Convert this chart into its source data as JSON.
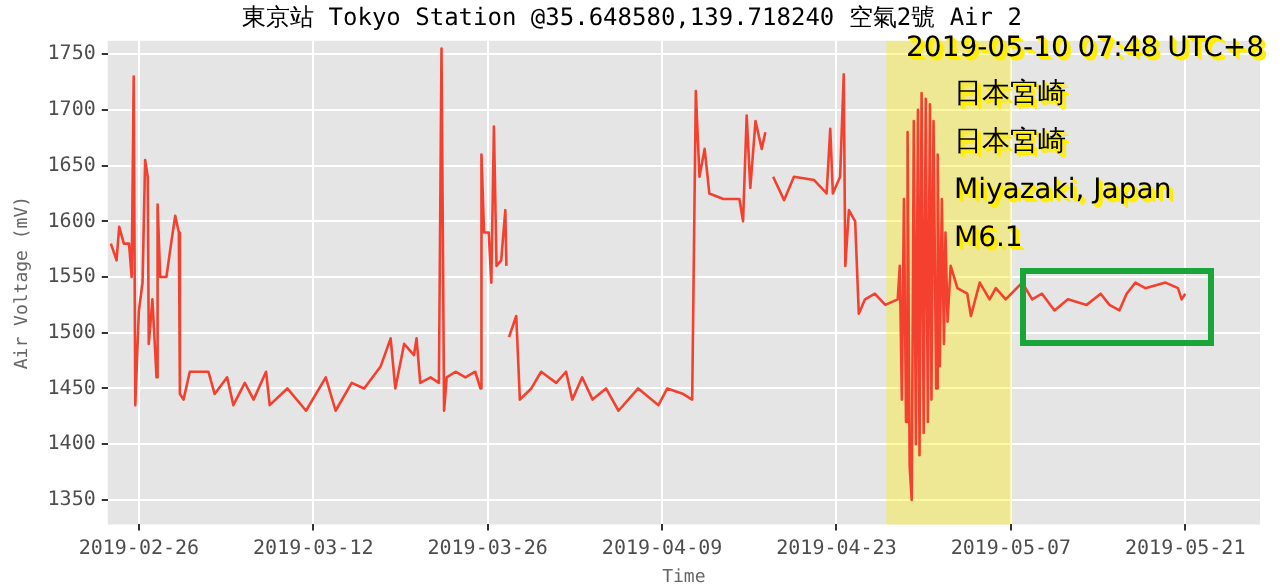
{
  "chart_data": {
    "type": "line",
    "title": "東京站 Tokyo Station @35.648580,139.718240 空氣2號 Air 2",
    "xlabel": "Time",
    "ylabel": "Air Voltage (mV)",
    "annotations": [
      "2019-05-10 07:48 UTC+8",
      "日本宮崎",
      "日本宮崎",
      "Miyazaki, Japan",
      "M6.1"
    ],
    "xlim": [
      "2019-02-23T12:00",
      "2019-05-27T00:00"
    ],
    "xticks": [
      "2019-02-26",
      "2019-03-12",
      "2019-03-26",
      "2019-04-09",
      "2019-04-23",
      "2019-05-07",
      "2019-05-21"
    ],
    "ylim": [
      1328,
      1762
    ],
    "yticks": [
      1350,
      1400,
      1450,
      1500,
      1550,
      1600,
      1650,
      1700,
      1750
    ],
    "grid": true,
    "legend": false,
    "marker": "none",
    "line_style": "solid",
    "bands": [
      {
        "axis": "x",
        "from": "2019-04-27T00:00",
        "to": "2019-05-07T00:00",
        "color": "#ffee00"
      }
    ],
    "series": [
      {
        "color": "#f4412f",
        "x": [
          "2019-02-23T18:00",
          "2019-02-24T05:00",
          "2019-02-24T10:00",
          "2019-02-24T19:00",
          "2019-02-25T05:00",
          "2019-02-25T10:00",
          "2019-02-25T14:00",
          "2019-02-25T17:00",
          "2019-02-26T00:00",
          "2019-02-26T07:00",
          "2019-02-26T12:00",
          "2019-02-26T17:00",
          "2019-02-26T19:00",
          "2019-02-27T02:00",
          "2019-02-27T10:00",
          "2019-02-27T12:00",
          "2019-02-27T17:00",
          "2019-02-28T05:00",
          "2019-02-28T14:00",
          "2019-02-28T22:00",
          "2019-03-01T05:00",
          "2019-03-01T07:00",
          "2019-03-01T14:00",
          "2019-03-02T02:00",
          "2019-03-03T14:00",
          "2019-03-04T02:00",
          "2019-03-05T02:00",
          "2019-03-05T14:00",
          "2019-03-06T12:00",
          "2019-03-07T05:00",
          "2019-03-08T05:00",
          "2019-03-08T12:00",
          "2019-03-09T22:00",
          "2019-03-11T10:00",
          "2019-03-13T00:00",
          "2019-03-13T19:00",
          "2019-03-15T02:00",
          "2019-03-16T02:00",
          "2019-03-17T10:00",
          "2019-03-18T05:00",
          "2019-03-18T14:00",
          "2019-03-19T07:00",
          "2019-03-20T02:00",
          "2019-03-20T07:00",
          "2019-03-20T14:00",
          "2019-03-21T10:00",
          "2019-03-22T02:00",
          "2019-03-22T07:00",
          "2019-03-22T12:00",
          "2019-03-22T17:00",
          "2019-03-23T10:00",
          "2019-03-24T05:00",
          "2019-03-25T00:00",
          "2019-03-25T10:00",
          "2019-03-25T12:00",
          "2019-03-25T17:00",
          "2019-03-26T02:00",
          "2019-03-26T07:00",
          "2019-03-26T12:00",
          "2019-03-26T17:00",
          "2019-03-27T02:00",
          "2019-03-27T10:00",
          "2019-03-27T12:00",
          "2019-03-27T14:00",
          "2019-03-27T17:00",
          "2019-03-28T07:00",
          "2019-03-28T14:00",
          "2019-03-29T12:00",
          "2019-03-30T07:00",
          "2019-03-31T12:00",
          "2019-04-01T07:00",
          "2019-04-01T19:00",
          "2019-04-02T14:00",
          "2019-04-03T10:00",
          "2019-04-04T12:00",
          "2019-04-05T12:00",
          "2019-04-07T02:00",
          "2019-04-08T17:00",
          "2019-04-09T10:00",
          "2019-04-10T17:00",
          "2019-04-11T10:00",
          "2019-04-11T17:00",
          "2019-04-12T00:00",
          "2019-04-12T10:00",
          "2019-04-12T19:00",
          "2019-04-13T22:00",
          "2019-04-15T05:00",
          "2019-04-15T12:00",
          "2019-04-15T19:00",
          "2019-04-16T02:00",
          "2019-04-16T12:00",
          "2019-04-17T00:00",
          "2019-04-17T07:00",
          "2019-04-17T12:00",
          "2019-04-17T22:00",
          "2019-04-18T19:00",
          "2019-04-19T14:00",
          "2019-04-21T05:00",
          "2019-04-22T05:00",
          "2019-04-22T12:00",
          "2019-04-22T17:00",
          "2019-04-23T07:00",
          "2019-04-23T14:00",
          "2019-04-23T17:00",
          "2019-04-24T00:00",
          "2019-04-24T12:00",
          "2019-04-24T19:00",
          "2019-04-25T07:00",
          "2019-04-26T02:00",
          "2019-04-26T22:00",
          "2019-04-27T22:00",
          "2019-04-28T02:00",
          "2019-04-28T06:00",
          "2019-04-28T10:00",
          "2019-04-28T14:00",
          "2019-04-28T17:00",
          "2019-04-28T21:00",
          "2019-04-29T01:00",
          "2019-04-29T05:00",
          "2019-04-29T09:00",
          "2019-04-29T13:00",
          "2019-04-29T16:00",
          "2019-04-29T20:00",
          "2019-04-30T00:00",
          "2019-04-30T04:00",
          "2019-04-30T08:00",
          "2019-04-30T12:00",
          "2019-04-30T15:00",
          "2019-04-30T19:00",
          "2019-05-01T00:00",
          "2019-05-01T03:00",
          "2019-05-01T07:00",
          "2019-05-01T11:00",
          "2019-05-01T15:00",
          "2019-05-01T18:00",
          "2019-05-01T22:00",
          "2019-05-02T04:00",
          "2019-05-02T17:00",
          "2019-05-03T12:00",
          "2019-05-03T19:00",
          "2019-05-04T12:00",
          "2019-05-05T07:00",
          "2019-05-05T19:00",
          "2019-05-06T14:00",
          "2019-05-07T22:00",
          "2019-05-08T17:00",
          "2019-05-09T12:00",
          "2019-05-10T12:00",
          "2019-05-11T14:00",
          "2019-05-13T02:00",
          "2019-05-14T05:00",
          "2019-05-14T22:00",
          "2019-05-15T17:00",
          "2019-05-16T07:00",
          "2019-05-17T00:00",
          "2019-05-17T19:00",
          "2019-05-19T10:00",
          "2019-05-20T10:00",
          "2019-05-20T17:00",
          "2019-05-21T00:00"
        ],
        "values": [
          1580,
          1565,
          1595,
          1580,
          1580,
          1550,
          1730,
          1435,
          1520,
          1545,
          1655,
          1640,
          1490,
          1530,
          1460,
          1615,
          1550,
          1550,
          1580,
          1605,
          1590,
          1445,
          1440,
          1465,
          1465,
          1445,
          1460,
          1435,
          1455,
          1440,
          1465,
          1435,
          1450,
          1430,
          1460,
          1430,
          1455,
          1450,
          1470,
          1495,
          1450,
          1490,
          1480,
          1495,
          1455,
          1460,
          1455,
          1755,
          1430,
          1460,
          1465,
          1460,
          1465,
          1450,
          1660,
          1590,
          1590,
          1545,
          1685,
          1560,
          1565,
          1610,
          1560,
          null,
          1496,
          1515,
          1440,
          1450,
          1465,
          1455,
          1465,
          1440,
          1460,
          1440,
          1450,
          1430,
          1450,
          1435,
          1450,
          1445,
          1440,
          1717,
          1640,
          1665,
          1625,
          1620,
          1620,
          1600,
          1695,
          1630,
          1690,
          1665,
          1680,
          null,
          1640,
          1619,
          1640,
          1637,
          1625,
          1683,
          1625,
          1640,
          1732,
          1560,
          1610,
          1600,
          1517,
          1530,
          1535,
          1525,
          1530,
          1560,
          1440,
          1620,
          1420,
          1680,
          1380,
          1350,
          1690,
          1400,
          1700,
          1390,
          1715,
          1410,
          1710,
          1420,
          1705,
          1440,
          1690,
          1450,
          1660,
          1470,
          1620,
          1490,
          1590,
          1510,
          1560,
          1540,
          1535,
          1515,
          1545,
          1530,
          1540,
          1530,
          1545,
          1530,
          1535,
          1520,
          1530,
          1525,
          1535,
          1525,
          1520,
          1535,
          1545,
          1540,
          1545,
          1540,
          1530,
          1535
        ]
      }
    ]
  }
}
